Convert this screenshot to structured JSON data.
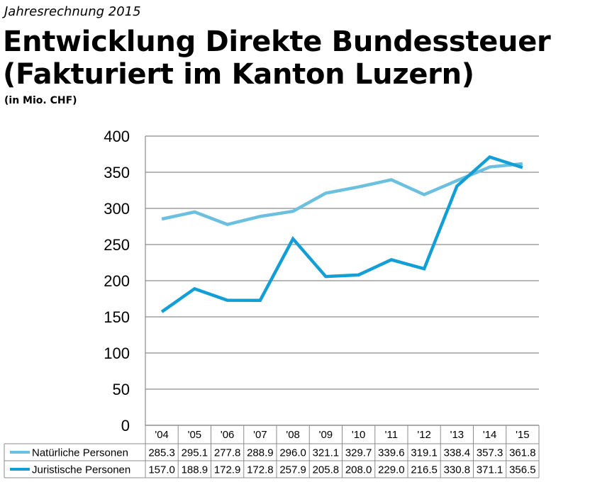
{
  "kicker": "Jahresrechnung 2015",
  "title_line1": "Entwicklung Direkte Bundessteuer",
  "title_line2": "(Fakturiert im Kanton Luzern)",
  "unit": "(in Mio. CHF)",
  "chart_data": {
    "type": "line",
    "categories": [
      "'04",
      "'05",
      "'06",
      "'07",
      "'08",
      "'09",
      "'10",
      "'11",
      "'12",
      "'13",
      "'14",
      "'15"
    ],
    "ylim": [
      0,
      400
    ],
    "yticks": [
      "0",
      "50",
      "100",
      "150",
      "200",
      "250",
      "300",
      "350",
      "400"
    ],
    "grid": true,
    "legend": "data-table-below",
    "series": [
      {
        "name": "Natürliche Personen",
        "color": "#6bbfdf",
        "values": [
          285.3,
          295.1,
          277.8,
          288.9,
          296.0,
          321.1,
          329.7,
          339.6,
          319.1,
          338.4,
          357.3,
          361.8
        ],
        "labels": [
          "285.3",
          "295.1",
          "277.8",
          "288.9",
          "296.0",
          "321.1",
          "329.7",
          "339.6",
          "319.1",
          "338.4",
          "357.3",
          "361.8"
        ]
      },
      {
        "name": "Juristische Personen",
        "color": "#139fd6",
        "values": [
          157.0,
          188.9,
          172.9,
          172.8,
          257.9,
          205.8,
          208.0,
          229.0,
          216.5,
          330.8,
          371.1,
          356.5
        ],
        "labels": [
          "157.0",
          "188.9",
          "172.9",
          "172.8",
          "257.9",
          "205.8",
          "208.0",
          "229.0",
          "216.5",
          "330.8",
          "371.1",
          "356.5"
        ]
      }
    ]
  }
}
